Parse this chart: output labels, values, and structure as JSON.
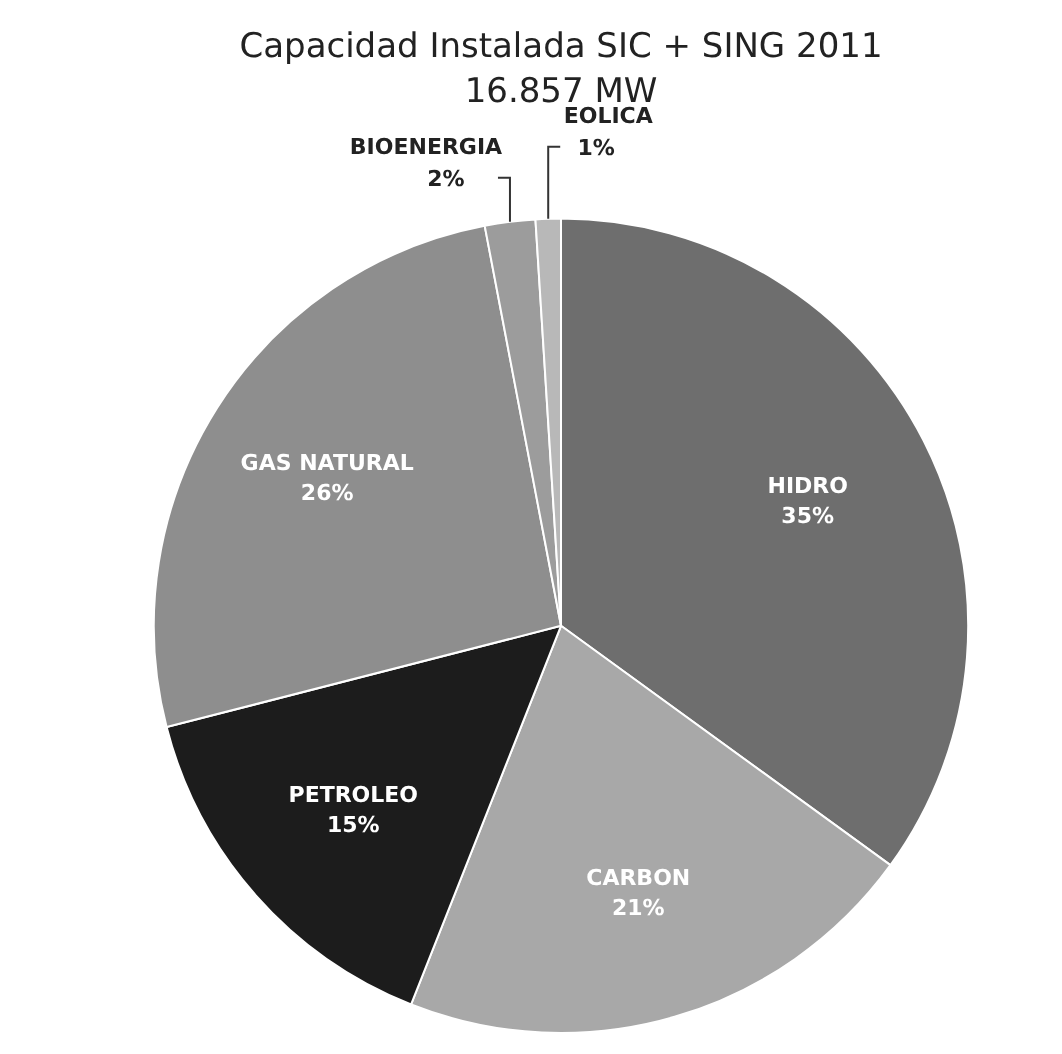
{
  "chart_data": {
    "type": "pie",
    "title": "Capacidad Instalada SIC + SING 2011",
    "subtitle": "16.857 MW",
    "categories": [
      "HIDRO",
      "CARBON",
      "PETROLEO",
      "GAS NATURAL",
      "BIOENERGIA",
      "EOLICA"
    ],
    "values": [
      35,
      21,
      15,
      26,
      2,
      1
    ],
    "colors": [
      "#6e6e6e",
      "#a8a8a8",
      "#1c1c1c",
      "#8e8e8e",
      "#9c9c9c",
      "#b8b8b8"
    ],
    "value_labels": [
      "35%",
      "21%",
      "15%",
      "26%",
      "2%",
      "1%"
    ],
    "legend": false
  }
}
